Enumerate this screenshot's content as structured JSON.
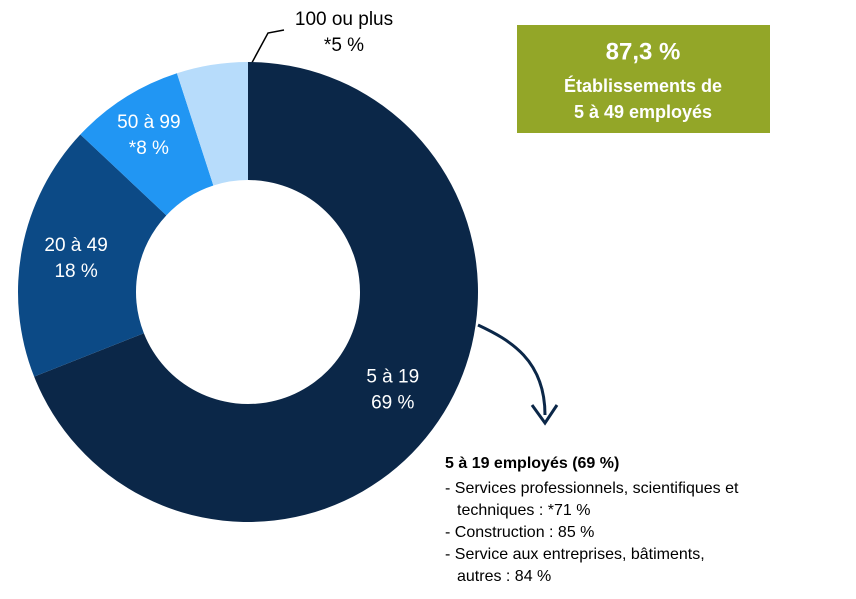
{
  "chart_data": {
    "type": "donut",
    "categories": [
      "5 à 19",
      "20 à 49",
      "50 à 99",
      "100 ou plus"
    ],
    "values": [
      69,
      18,
      8,
      5
    ],
    "value_labels": [
      "69 %",
      "18 %",
      "*8 %",
      "*5 %"
    ],
    "colors": [
      "#0b2748",
      "#0c4a86",
      "#2196f3",
      "#b7dcfb"
    ],
    "highlight": {
      "value": "87,3 %",
      "lines": [
        "Établissements de",
        "5 à 49 employés"
      ]
    },
    "callout": {
      "title": "5 à 19 employés (69 %)",
      "items": [
        [
          "- Services professionnels, scientifiques et",
          "techniques : *71 %"
        ],
        [
          "- Construction : 85 %"
        ],
        [
          "- Service aux entreprises, bâtiments,",
          "autres : 84 %"
        ]
      ]
    }
  }
}
